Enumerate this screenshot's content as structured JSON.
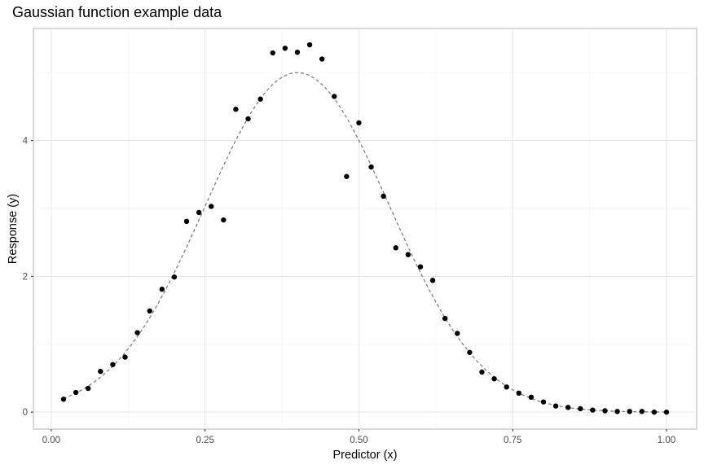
{
  "chart_data": {
    "type": "scatter",
    "title": "Gaussian function example data",
    "xlabel": "Predictor (x)",
    "ylabel": "Response (y)",
    "xlim": [
      -0.029,
      1.049
    ],
    "ylim": [
      -0.25,
      5.65
    ],
    "x_ticks": [
      0.0,
      0.25,
      0.5,
      0.75,
      1.0
    ],
    "x_tick_labels": [
      "0.00",
      "0.25",
      "0.50",
      "0.75",
      "1.00"
    ],
    "y_ticks": [
      0,
      2,
      4
    ],
    "y_tick_labels": [
      "0",
      "2",
      "4"
    ],
    "grid": true,
    "legend": "none",
    "series": [
      {
        "type": "scatter",
        "color": "#000000",
        "x": [
          0.02,
          0.04,
          0.06,
          0.08,
          0.1,
          0.12,
          0.14,
          0.16,
          0.18,
          0.2,
          0.22,
          0.24,
          0.26,
          0.28,
          0.3,
          0.32,
          0.34,
          0.36,
          0.38,
          0.4,
          0.42,
          0.44,
          0.46,
          0.48,
          0.5,
          0.52,
          0.54,
          0.56,
          0.58,
          0.6,
          0.62,
          0.64,
          0.66,
          0.68,
          0.7,
          0.72,
          0.74,
          0.76,
          0.78,
          0.8,
          0.82,
          0.84,
          0.86,
          0.88,
          0.9,
          0.92,
          0.94,
          0.96,
          0.98,
          1.0
        ],
        "y": [
          0.19,
          0.29,
          0.35,
          0.6,
          0.7,
          0.81,
          1.17,
          1.49,
          1.81,
          1.99,
          2.81,
          2.94,
          3.03,
          2.83,
          4.46,
          4.32,
          4.61,
          5.29,
          5.36,
          5.3,
          5.41,
          5.2,
          4.65,
          3.47,
          4.26,
          3.61,
          3.18,
          2.42,
          2.32,
          2.14,
          1.94,
          1.38,
          1.16,
          0.88,
          0.59,
          0.49,
          0.37,
          0.28,
          0.22,
          0.15,
          0.09,
          0.07,
          0.05,
          0.03,
          0.02,
          0.01,
          0.01,
          0.01,
          0.0,
          0.0
        ]
      },
      {
        "type": "line",
        "style": "dashed",
        "color": "#808080",
        "function": "gaussian",
        "amplitude": 5.0,
        "mean": 0.4,
        "sd": 0.15,
        "x_range": [
          0.02,
          1.0
        ]
      }
    ]
  }
}
